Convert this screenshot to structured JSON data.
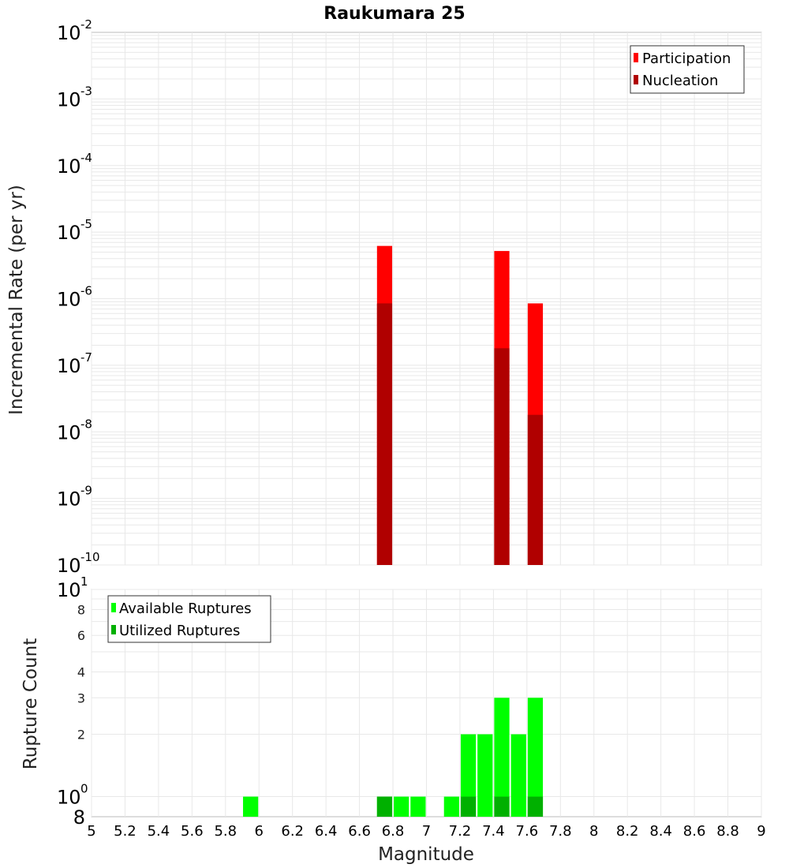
{
  "chart_data": [
    {
      "type": "bar",
      "title": "Raukumara 25",
      "xlabel": "",
      "ylabel": "Incremental Rate (per yr)",
      "yscale": "log",
      "ylim": [
        1e-10,
        0.01
      ],
      "xlim": [
        5,
        9
      ],
      "grid": true,
      "legend_position": "top-right",
      "yticks": [
        {
          "value": 1e-10,
          "base": "10",
          "exp": "-10"
        },
        {
          "value": 1e-09,
          "base": "10",
          "exp": "-9"
        },
        {
          "value": 1e-08,
          "base": "10",
          "exp": "-8"
        },
        {
          "value": 1e-07,
          "base": "10",
          "exp": "-7"
        },
        {
          "value": 1e-06,
          "base": "10",
          "exp": "-6"
        },
        {
          "value": 1e-05,
          "base": "10",
          "exp": "-5"
        },
        {
          "value": 0.0001,
          "base": "10",
          "exp": "-4"
        },
        {
          "value": 0.001,
          "base": "10",
          "exp": "-3"
        },
        {
          "value": 0.01,
          "base": "10",
          "exp": "-2"
        }
      ],
      "series": [
        {
          "name": "Participation",
          "color": "#ff0000",
          "x": [
            6.75,
            7.45,
            7.65
          ],
          "values": [
            6.2e-06,
            5.2e-06,
            8.5e-07
          ]
        },
        {
          "name": "Nucleation",
          "color": "#b00000",
          "x": [
            6.75,
            7.45,
            7.65
          ],
          "values": [
            8.5e-07,
            1.8e-07,
            1.8e-08
          ]
        }
      ]
    },
    {
      "type": "bar",
      "title": "",
      "xlabel": "Magnitude",
      "ylabel": "Rupture Count",
      "yscale": "log",
      "ylim": [
        0.8,
        10
      ],
      "xlim": [
        5,
        9
      ],
      "grid": true,
      "legend_position": "top-left",
      "xticks": [
        "5",
        "5.2",
        "5.4",
        "5.6",
        "5.8",
        "6",
        "6.2",
        "6.4",
        "6.6",
        "6.8",
        "7",
        "7.2",
        "7.4",
        "7.6",
        "7.8",
        "8",
        "8.2",
        "8.4",
        "8.6",
        "8.8",
        "9"
      ],
      "yticks": [
        {
          "value": 0.8,
          "label": "8",
          "exp": ""
        },
        {
          "value": 1,
          "label": "10",
          "exp": "0"
        },
        {
          "value": 2,
          "label": "2",
          "exp": ""
        },
        {
          "value": 3,
          "label": "3",
          "exp": ""
        },
        {
          "value": 4,
          "label": "4",
          "exp": ""
        },
        {
          "value": 6,
          "label": "6",
          "exp": ""
        },
        {
          "value": 8,
          "label": "8",
          "exp": ""
        },
        {
          "value": 10,
          "label": "10",
          "exp": "1"
        }
      ],
      "series": [
        {
          "name": "Available Ruptures",
          "color": "#00ff00",
          "x": [
            5.95,
            6.75,
            6.85,
            6.95,
            7.15,
            7.25,
            7.35,
            7.45,
            7.55,
            7.65
          ],
          "values": [
            1,
            1,
            1,
            1,
            1,
            2,
            2,
            3,
            2,
            3
          ]
        },
        {
          "name": "Utilized Ruptures",
          "color": "#00b000",
          "x": [
            6.75,
            7.25,
            7.45,
            7.65
          ],
          "values": [
            1,
            1,
            1,
            1
          ]
        }
      ]
    }
  ]
}
